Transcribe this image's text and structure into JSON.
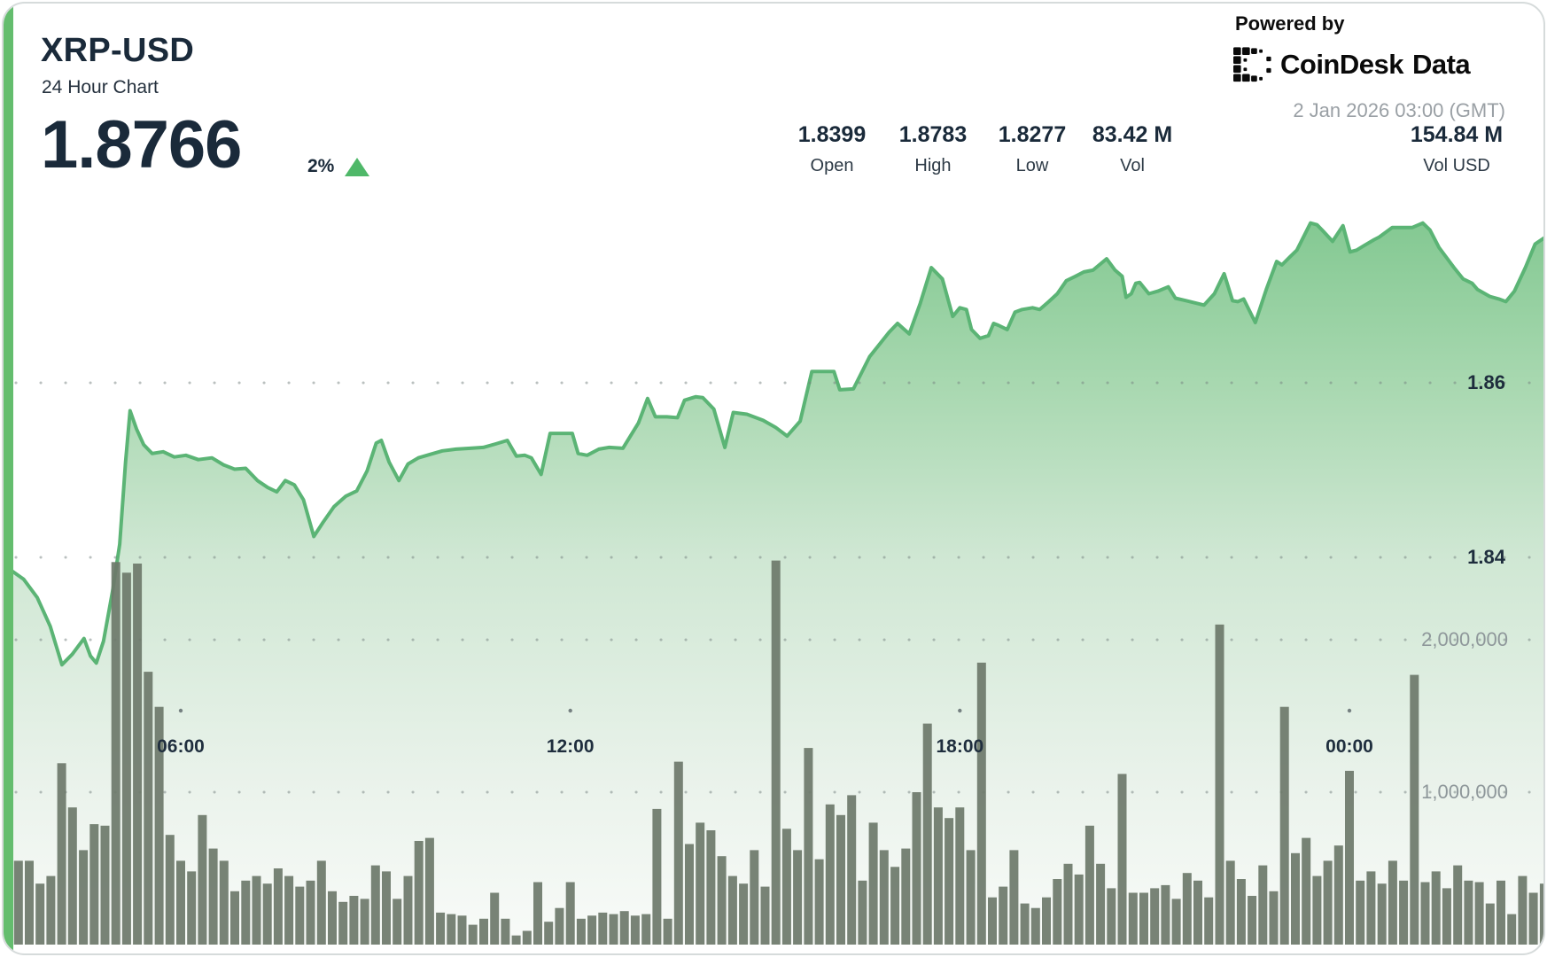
{
  "header": {
    "symbol": "XRP-USD",
    "subtitle": "24 Hour Chart",
    "price": "1.8766",
    "change_percent": "2%",
    "change_direction": "up"
  },
  "powered_by": {
    "label": "Powered by",
    "brand": "CoinDesk",
    "brand2": "Data",
    "timestamp": "2 Jan 2026 03:00 (GMT)"
  },
  "stats": [
    {
      "value": "1.8399",
      "label": "Open"
    },
    {
      "value": "1.8783",
      "label": "High"
    },
    {
      "value": "1.8277",
      "label": "Low"
    },
    {
      "value": "83.42 M",
      "label": "Vol"
    },
    {
      "value": "154.84 M",
      "label": "Vol USD"
    }
  ],
  "colors": {
    "accent_green": "#64bd6e",
    "line_green": "#5bb475",
    "area_top_green": "#80c78f",
    "area_bottom": "#f9fbf9",
    "bar_gray": "#6d786a",
    "text_navy": "#1a2a3a",
    "axis_gray": "#8e979a",
    "timestamp_gray": "#9aa0a5",
    "triangle_green": "#4fb869"
  },
  "chart_data": {
    "type": "area",
    "title": "XRP-USD 24 Hour Chart",
    "legend": "none",
    "grid": "dotted horizontal lines",
    "x_unit": "hour of day (GMT), 24h window ending 2 Jan 2026 03:00",
    "x_axis": {
      "tick_hours": [
        6,
        12,
        18,
        24
      ],
      "labels": [
        "06:00",
        "12:00",
        "18:00",
        "00:00"
      ]
    },
    "y_axis_price": {
      "side": "right",
      "ticks": [
        1.86,
        1.84
      ],
      "labels": [
        "1.86",
        "1.84"
      ],
      "range_visible": [
        1.8277,
        1.8783
      ]
    },
    "y_axis_volume": {
      "side": "right",
      "ticks": [
        2000000,
        1000000
      ],
      "labels": [
        "2,000,000",
        "1,000,000"
      ]
    },
    "price_series": {
      "name": "XRP-USD price",
      "open": 1.8399,
      "high": 1.8783,
      "low": 1.8277,
      "last": 1.8766,
      "points": [
        [
          3.35,
          1.8387
        ],
        [
          3.58,
          1.8375
        ],
        [
          3.79,
          1.8354
        ],
        [
          3.99,
          1.8321
        ],
        [
          4.17,
          1.8277
        ],
        [
          4.33,
          1.8289
        ],
        [
          4.51,
          1.8307
        ],
        [
          4.61,
          1.8287
        ],
        [
          4.7,
          1.8279
        ],
        [
          4.81,
          1.8304
        ],
        [
          4.95,
          1.8361
        ],
        [
          5.06,
          1.8415
        ],
        [
          5.15,
          1.8509
        ],
        [
          5.22,
          1.8568
        ],
        [
          5.32,
          1.8547
        ],
        [
          5.43,
          1.8529
        ],
        [
          5.56,
          1.8519
        ],
        [
          5.73,
          1.8521
        ],
        [
          5.9,
          1.8515
        ],
        [
          6.08,
          1.8517
        ],
        [
          6.27,
          1.8512
        ],
        [
          6.48,
          1.8514
        ],
        [
          6.66,
          1.8506
        ],
        [
          6.83,
          1.8501
        ],
        [
          7.0,
          1.8502
        ],
        [
          7.18,
          1.8488
        ],
        [
          7.34,
          1.848
        ],
        [
          7.48,
          1.8475
        ],
        [
          7.61,
          1.8488
        ],
        [
          7.75,
          1.8483
        ],
        [
          7.89,
          1.8466
        ],
        [
          8.05,
          1.8424
        ],
        [
          8.19,
          1.844
        ],
        [
          8.36,
          1.8458
        ],
        [
          8.54,
          1.847
        ],
        [
          8.71,
          1.8476
        ],
        [
          8.87,
          1.8499
        ],
        [
          9.01,
          1.8531
        ],
        [
          9.09,
          1.8534
        ],
        [
          9.21,
          1.8509
        ],
        [
          9.36,
          1.8488
        ],
        [
          9.5,
          1.8507
        ],
        [
          9.66,
          1.8514
        ],
        [
          9.84,
          1.8518
        ],
        [
          10.03,
          1.8522
        ],
        [
          10.24,
          1.8524
        ],
        [
          10.46,
          1.8525
        ],
        [
          10.66,
          1.8526
        ],
        [
          10.85,
          1.853
        ],
        [
          11.03,
          1.8534
        ],
        [
          11.17,
          1.8516
        ],
        [
          11.3,
          1.8517
        ],
        [
          11.4,
          1.8514
        ],
        [
          11.55,
          1.8495
        ],
        [
          11.69,
          1.8542
        ],
        [
          11.85,
          1.8542
        ],
        [
          12.03,
          1.8542
        ],
        [
          12.12,
          1.8519
        ],
        [
          12.26,
          1.8517
        ],
        [
          12.44,
          1.8524
        ],
        [
          12.6,
          1.8526
        ],
        [
          12.81,
          1.8525
        ],
        [
          13.05,
          1.8554
        ],
        [
          13.19,
          1.8582
        ],
        [
          13.31,
          1.8561
        ],
        [
          13.49,
          1.8561
        ],
        [
          13.65,
          1.856
        ],
        [
          13.76,
          1.858
        ],
        [
          13.93,
          1.8584
        ],
        [
          14.04,
          1.8583
        ],
        [
          14.21,
          1.857
        ],
        [
          14.38,
          1.8526
        ],
        [
          14.51,
          1.8566
        ],
        [
          14.72,
          1.8564
        ],
        [
          14.97,
          1.8557
        ],
        [
          15.16,
          1.8549
        ],
        [
          15.34,
          1.8539
        ],
        [
          15.54,
          1.8556
        ],
        [
          15.72,
          1.8613
        ],
        [
          15.88,
          1.8613
        ],
        [
          16.06,
          1.8613
        ],
        [
          16.15,
          1.8592
        ],
        [
          16.36,
          1.8593
        ],
        [
          16.61,
          1.863
        ],
        [
          16.91,
          1.8658
        ],
        [
          17.04,
          1.8668
        ],
        [
          17.22,
          1.8656
        ],
        [
          17.39,
          1.8691
        ],
        [
          17.56,
          1.8732
        ],
        [
          17.73,
          1.8719
        ],
        [
          17.89,
          1.8676
        ],
        [
          18.0,
          1.8686
        ],
        [
          18.1,
          1.8684
        ],
        [
          18.18,
          1.8661
        ],
        [
          18.31,
          1.8651
        ],
        [
          18.44,
          1.8654
        ],
        [
          18.52,
          1.8668
        ],
        [
          18.59,
          1.8666
        ],
        [
          18.73,
          1.8661
        ],
        [
          18.85,
          1.8681
        ],
        [
          18.96,
          1.8684
        ],
        [
          19.12,
          1.8686
        ],
        [
          19.23,
          1.8684
        ],
        [
          19.37,
          1.8693
        ],
        [
          19.5,
          1.8702
        ],
        [
          19.64,
          1.8717
        ],
        [
          19.78,
          1.8722
        ],
        [
          19.91,
          1.8727
        ],
        [
          20.05,
          1.8729
        ],
        [
          20.21,
          1.8739
        ],
        [
          20.26,
          1.8742
        ],
        [
          20.39,
          1.8729
        ],
        [
          20.5,
          1.8722
        ],
        [
          20.56,
          1.8698
        ],
        [
          20.64,
          1.8702
        ],
        [
          20.71,
          1.8714
        ],
        [
          20.77,
          1.8715
        ],
        [
          20.91,
          1.8702
        ],
        [
          21.05,
          1.8705
        ],
        [
          21.21,
          1.871
        ],
        [
          21.32,
          1.8697
        ],
        [
          21.49,
          1.8694
        ],
        [
          21.76,
          1.8689
        ],
        [
          21.92,
          1.8702
        ],
        [
          22.07,
          1.8725
        ],
        [
          22.2,
          1.8694
        ],
        [
          22.28,
          1.8693
        ],
        [
          22.37,
          1.8696
        ],
        [
          22.55,
          1.8669
        ],
        [
          22.72,
          1.8707
        ],
        [
          22.88,
          1.8739
        ],
        [
          22.96,
          1.8735
        ],
        [
          23.08,
          1.8744
        ],
        [
          23.19,
          1.8752
        ],
        [
          23.4,
          1.8783
        ],
        [
          23.5,
          1.8781
        ],
        [
          23.58,
          1.8775
        ],
        [
          23.74,
          1.8762
        ],
        [
          23.9,
          1.878
        ],
        [
          24.01,
          1.875
        ],
        [
          24.11,
          1.8752
        ],
        [
          24.22,
          1.8757
        ],
        [
          24.38,
          1.8764
        ],
        [
          24.46,
          1.8767
        ],
        [
          24.66,
          1.8778
        ],
        [
          24.79,
          1.8778
        ],
        [
          24.97,
          1.8778
        ],
        [
          25.13,
          1.8783
        ],
        [
          25.24,
          1.8775
        ],
        [
          25.38,
          1.8755
        ],
        [
          25.49,
          1.8744
        ],
        [
          25.61,
          1.8732
        ],
        [
          25.75,
          1.8719
        ],
        [
          25.89,
          1.8714
        ],
        [
          25.97,
          1.8707
        ],
        [
          26.16,
          1.8699
        ],
        [
          26.3,
          1.8696
        ],
        [
          26.41,
          1.8693
        ],
        [
          26.54,
          1.8705
        ],
        [
          26.71,
          1.8732
        ],
        [
          26.86,
          1.8759
        ],
        [
          27.02,
          1.8767
        ],
        [
          27.1,
          1.8766
        ]
      ]
    },
    "volume_series": {
      "name": "Volume",
      "unit": "millions",
      "total_24h_m": 83.42,
      "start_hour": 3.5,
      "step_hours": 0.1667,
      "values": [
        0.55,
        0.55,
        0.4,
        0.45,
        1.19,
        0.9,
        0.62,
        0.79,
        0.78,
        2.51,
        2.44,
        2.5,
        1.79,
        1.56,
        0.72,
        0.55,
        0.48,
        0.85,
        0.63,
        0.55,
        0.35,
        0.42,
        0.45,
        0.4,
        0.5,
        0.45,
        0.38,
        0.42,
        0.55,
        0.35,
        0.28,
        0.32,
        0.3,
        0.52,
        0.48,
        0.3,
        0.45,
        0.68,
        0.7,
        0.21,
        0.2,
        0.19,
        0.13,
        0.17,
        0.34,
        0.17,
        0.06,
        0.09,
        0.41,
        0.15,
        0.24,
        0.41,
        0.17,
        0.19,
        0.21,
        0.2,
        0.22,
        0.19,
        0.2,
        0.89,
        0.17,
        1.2,
        0.66,
        0.8,
        0.75,
        0.58,
        0.45,
        0.4,
        0.62,
        0.38,
        2.52,
        0.76,
        0.62,
        1.29,
        0.56,
        0.92,
        0.85,
        0.98,
        0.42,
        0.8,
        0.62,
        0.51,
        0.63,
        1.0,
        1.45,
        0.9,
        0.83,
        0.9,
        0.62,
        1.85,
        0.31,
        0.38,
        0.62,
        0.27,
        0.24,
        0.31,
        0.43,
        0.53,
        0.46,
        0.78,
        0.53,
        0.37,
        1.12,
        0.34,
        0.34,
        0.37,
        0.39,
        0.3,
        0.47,
        0.42,
        0.31,
        2.1,
        0.55,
        0.43,
        0.32,
        0.52,
        0.35,
        1.56,
        0.6,
        0.7,
        0.45,
        0.55,
        0.65,
        1.14,
        0.42,
        0.48,
        0.4,
        0.55,
        0.42,
        1.77,
        0.41,
        0.48,
        0.37,
        0.52,
        0.42,
        0.41,
        0.27,
        0.42,
        0.2,
        0.45,
        0.34,
        0.4
      ]
    }
  }
}
